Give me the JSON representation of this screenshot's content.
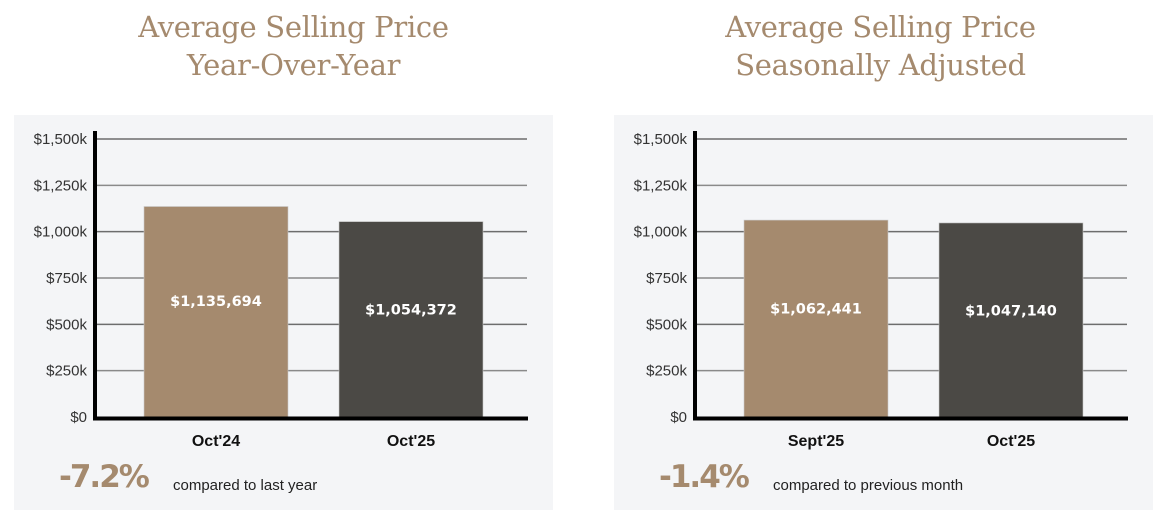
{
  "colors": {
    "title": "#a58a6e",
    "bar_previous": "#a58a6e",
    "bar_current": "#4b4945",
    "panel_bg": "#f4f5f7",
    "change": "#a58a6e"
  },
  "chart_data": [
    {
      "type": "bar",
      "title": "Average Selling Price Year-Over-Year",
      "title_lines": [
        "Average Selling Price",
        "Year-Over-Year"
      ],
      "categories": [
        "Oct'24",
        "Oct'25"
      ],
      "values": [
        1135694,
        1054372
      ],
      "value_labels": [
        "$1,135,694",
        "$1,054,372"
      ],
      "yticks": [
        0,
        250000,
        500000,
        750000,
        1000000,
        1250000,
        1500000
      ],
      "ytick_labels": [
        "$0",
        "$250k",
        "$500k",
        "$750k",
        "$1,000k",
        "$1,250k",
        "$1,500k"
      ],
      "ylim": [
        0,
        1500000
      ],
      "xlabel": "",
      "ylabel": "",
      "grid": true,
      "legend": "none",
      "change_value": "-7.2%",
      "change_text": "compared to last year"
    },
    {
      "type": "bar",
      "title": "Average Selling Price Seasonally Adjusted",
      "title_lines": [
        "Average Selling Price",
        "Seasonally Adjusted"
      ],
      "categories": [
        "Sept'25",
        "Oct'25"
      ],
      "values": [
        1062441,
        1047140
      ],
      "value_labels": [
        "$1,062,441",
        "$1,047,140"
      ],
      "yticks": [
        0,
        250000,
        500000,
        750000,
        1000000,
        1250000,
        1500000
      ],
      "ytick_labels": [
        "$0",
        "$250k",
        "$500k",
        "$750k",
        "$1,000k",
        "$1,250k",
        "$1,500k"
      ],
      "ylim": [
        0,
        1500000
      ],
      "xlabel": "",
      "ylabel": "",
      "grid": true,
      "legend": "none",
      "change_value": "-1.4%",
      "change_text": "compared to previous month"
    }
  ]
}
